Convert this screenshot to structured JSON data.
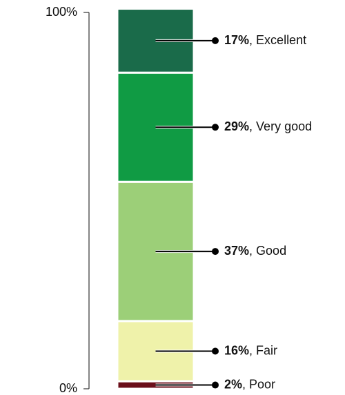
{
  "chart_data": {
    "type": "stacked-bar",
    "categories": [
      "Excellent",
      "Very good",
      "Good",
      "Fair",
      "Poor"
    ],
    "values": [
      17,
      29,
      37,
      16,
      2
    ],
    "value_labels": [
      "17%",
      "29%",
      "37%",
      "16%",
      "2%"
    ],
    "label_separator": ", ",
    "colors": [
      "#1a6b4a",
      "#109b44",
      "#9ccf78",
      "#eff2aa",
      "#6b0f1a"
    ],
    "ylim": [
      0,
      100
    ],
    "yticks": [
      {
        "value": 0,
        "label": "0%"
      },
      {
        "value": 100,
        "label": "100%"
      }
    ]
  }
}
